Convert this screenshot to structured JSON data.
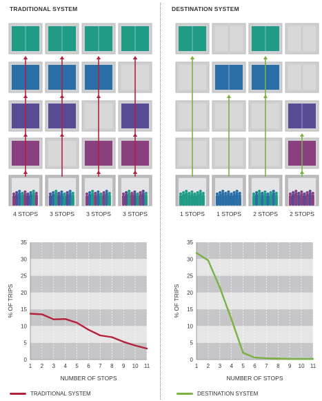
{
  "headings": {
    "traditional": "TRADITIONAL SYSTEM",
    "destination": "DESTINATION SYSTEM"
  },
  "colors": {
    "floor5": "#1f9b86",
    "floor4": "#2a6ea8",
    "floor3": "#574b94",
    "floor2": "#8a3f7e",
    "empty": "#d8d8d8",
    "trad_line": "#b3213b",
    "dest_line": "#7bb143"
  },
  "shafts": {
    "traditional": [
      {
        "label": "4 STOPS",
        "stops": [
          2,
          3,
          4,
          5
        ],
        "people": [
          "#8a3f7e",
          "#574b94",
          "#2a6ea8",
          "#1f9b86"
        ]
      },
      {
        "label": "3 STOPS",
        "stops": [
          3,
          4,
          5
        ],
        "people": [
          "#574b94",
          "#2a6ea8",
          "#1f9b86"
        ]
      },
      {
        "label": "3 STOPS",
        "stops": [
          2,
          4,
          5
        ],
        "people": [
          "#8a3f7e",
          "#2a6ea8",
          "#1f9b86"
        ]
      },
      {
        "label": "3 STOPS",
        "stops": [
          2,
          3,
          5
        ],
        "people": [
          "#8a3f7e",
          "#574b94",
          "#1f9b86"
        ]
      }
    ],
    "destination": [
      {
        "label": "1 STOPS",
        "stops": [
          5
        ],
        "people": [
          "#1f9b86"
        ]
      },
      {
        "label": "1 STOPS",
        "stops": [
          4
        ],
        "people": [
          "#2a6ea8"
        ]
      },
      {
        "label": "2 STOPS",
        "stops": [
          4,
          5
        ],
        "people": [
          "#1f9b86",
          "#2a6ea8"
        ]
      },
      {
        "label": "2 STOPS",
        "stops": [
          2,
          3
        ],
        "people": [
          "#8a3f7e",
          "#574b94"
        ]
      }
    ]
  },
  "chart_data": [
    {
      "type": "line",
      "x": [
        1,
        2,
        3,
        4,
        5,
        6,
        7,
        8,
        9,
        10,
        11
      ],
      "series": [
        {
          "name": "TRADITIONAL SYSTEM",
          "values": [
            13.7,
            13.5,
            12.0,
            12.1,
            11.0,
            8.9,
            7.2,
            6.7,
            5.3,
            4.2,
            3.3
          ]
        }
      ],
      "xlabel": "NUMBER OF STOPS",
      "ylabel": "% OF TRIPS",
      "xticks": [
        "1",
        "2",
        "3",
        "4",
        "5",
        "6",
        "7",
        "8",
        "9",
        "10",
        "11"
      ],
      "yticks": [
        "0",
        "5",
        "10",
        "15",
        "20",
        "25",
        "30",
        "35"
      ],
      "ylim": [
        0,
        35
      ],
      "xlim": [
        1,
        11
      ],
      "grid": "alternating horizontal bands"
    },
    {
      "type": "line",
      "x": [
        1,
        2,
        3,
        4,
        5,
        6,
        7,
        8,
        9,
        10,
        11
      ],
      "series": [
        {
          "name": "DESTINATION SYSTEM",
          "values": [
            31.8,
            29.6,
            21.5,
            12.0,
            2.0,
            0.6,
            0.4,
            0.3,
            0.2,
            0.2,
            0.2
          ]
        }
      ],
      "xlabel": "NUMBER OF STOPS",
      "ylabel": "% OF TRIPS",
      "xticks": [
        "1",
        "2",
        "3",
        "4",
        "5",
        "6",
        "7",
        "8",
        "9",
        "10",
        "11"
      ],
      "yticks": [
        "0",
        "5",
        "10",
        "15",
        "20",
        "25",
        "30",
        "35"
      ],
      "ylim": [
        0,
        35
      ],
      "xlim": [
        1,
        11
      ],
      "grid": "alternating horizontal bands"
    }
  ],
  "legend": {
    "traditional": "TRADITIONAL SYSTEM",
    "destination": "DESTINATION SYSTEM"
  }
}
